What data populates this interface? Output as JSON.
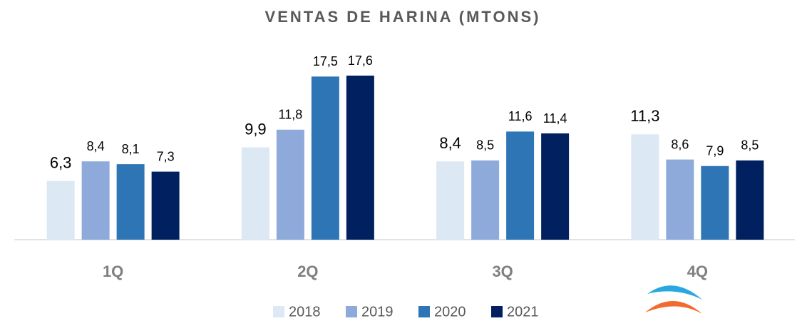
{
  "chart_data": {
    "type": "bar",
    "title": "VENTAS DE HARINA  (MTONS)",
    "categories": [
      "1Q",
      "2Q",
      "3Q",
      "4Q"
    ],
    "series": [
      {
        "name": "2018",
        "color": "#dde8f5",
        "values": [
          6.3,
          9.9,
          8.4,
          11.3
        ],
        "value_labels": [
          "6,3",
          "9,9",
          "8,4",
          "11,3"
        ]
      },
      {
        "name": "2019",
        "color": "#8eaadb",
        "values": [
          8.4,
          11.8,
          8.5,
          8.6
        ],
        "value_labels": [
          "8,4",
          "11,8",
          "8,5",
          "8,6"
        ]
      },
      {
        "name": "2020",
        "color": "#2e75b6",
        "values": [
          8.1,
          17.5,
          11.6,
          7.9
        ],
        "value_labels": [
          "8,1",
          "17,5",
          "11,6",
          "7,9"
        ]
      },
      {
        "name": "2021",
        "color": "#002060",
        "values": [
          7.3,
          17.6,
          11.4,
          8.5
        ],
        "value_labels": [
          "7,3",
          "17,6",
          "11,4",
          "8,5"
        ]
      }
    ],
    "legend": "bottom"
  }
}
